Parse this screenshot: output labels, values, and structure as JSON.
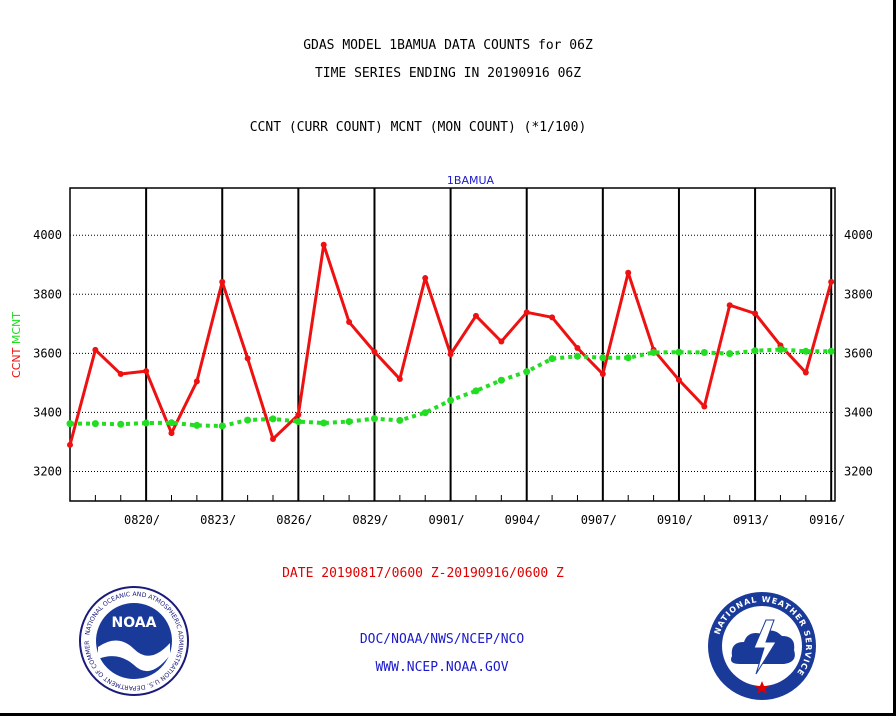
{
  "header": {
    "title_line1": "GDAS MODEL 1BAMUA DATA COUNTS for 06Z",
    "title_line2": "TIME SERIES ENDING IN 20190916 06Z",
    "subtitle": "CCNT (CURR COUNT) MCNT (MON COUNT) (*1/100)"
  },
  "footer": {
    "date_range": "DATE 20190817/0600 Z-20190916/0600 Z",
    "credit_line1": "DOC/NOAA/NWS/NCEP/NCO",
    "credit_line2": "WWW.NCEP.NOAA.GOV"
  },
  "logos": {
    "noaa_label": "NOAA",
    "noaa_ring_text": "NATIONAL OCEANIC AND ATMOSPHERIC ADMINISTRATION U.S. DEPARTMENT OF COMMERCE",
    "nws_ring_text": "NATIONAL WEATHER SERVICE"
  },
  "colors": {
    "ccnt": "#ee1111",
    "mcnt": "#22dd22",
    "legend_label": "#1a1acc",
    "frame": "#000000"
  },
  "chart_data": {
    "type": "line",
    "title": "1BAMUA",
    "ylabel_parts": [
      {
        "text": "CCNT",
        "color": "#ee1111"
      },
      {
        "text": "MCNT",
        "color": "#22dd22"
      }
    ],
    "x_tick_labels": [
      "0820/",
      "0823/",
      "0826/",
      "0829/",
      "0901/",
      "0904/",
      "0907/",
      "0910/",
      "0913/",
      "0916/"
    ],
    "x_tick_days": [
      3,
      6,
      9,
      12,
      15,
      18,
      21,
      24,
      27,
      30
    ],
    "x_range_days": [
      0,
      30.15
    ],
    "y_ticks": [
      3200,
      3400,
      3600,
      3800,
      4000
    ],
    "ylim": [
      3100,
      4160
    ],
    "grid": true,
    "series": [
      {
        "name": "CCNT",
        "color": "#ee1111",
        "values": [
          3290,
          3612,
          3530,
          3540,
          3330,
          3505,
          3842,
          3583,
          3310,
          3392,
          3968,
          3706,
          3605,
          3513,
          3855,
          3597,
          3727,
          3640,
          3739,
          3722,
          3618,
          3530,
          3873,
          3612,
          3510,
          3420,
          3763,
          3735,
          3627,
          3535,
          3842
        ]
      },
      {
        "name": "MCNT",
        "color": "#22dd22",
        "values": [
          3362,
          3362,
          3360,
          3364,
          3365,
          3356,
          3354,
          3374,
          3378,
          3369,
          3364,
          3369,
          3379,
          3373,
          3399,
          3441,
          3473,
          3509,
          3538,
          3582,
          3590,
          3585,
          3585,
          3603,
          3604,
          3603,
          3599,
          3609,
          3613,
          3607,
          3607
        ]
      }
    ]
  }
}
